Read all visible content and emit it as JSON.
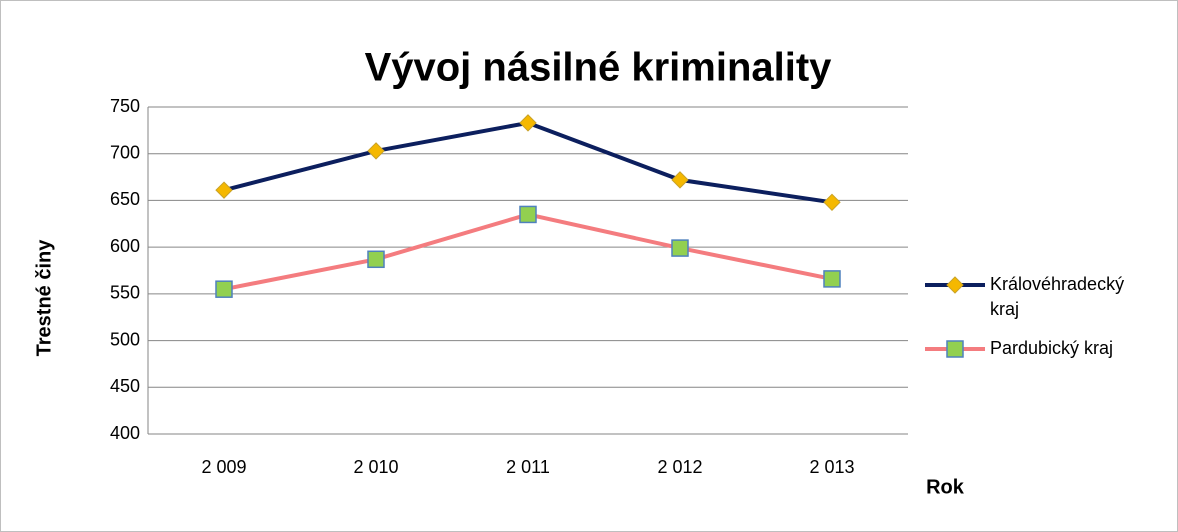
{
  "chart_data": {
    "type": "line",
    "title": "Vývoj násilné kriminality",
    "x_label": "Rok",
    "y_label": "Trestné činy",
    "categories": [
      "2 009",
      "2 010",
      "2 011",
      "2 012",
      "2 013"
    ],
    "series": [
      {
        "name": "Královéhradecký kraj",
        "color": "#0c1f5e",
        "marker": "diamond",
        "marker_color": "#f5b800",
        "values": [
          661,
          703,
          733,
          672,
          648
        ]
      },
      {
        "name": "Pardubický kraj",
        "color": "#f47c7f",
        "marker": "square",
        "marker_color": "#92d050",
        "values": [
          555,
          587,
          635,
          599,
          566
        ]
      }
    ],
    "ylim": [
      400,
      750
    ],
    "yticks": [
      400,
      450,
      500,
      550,
      600,
      650,
      700,
      750
    ],
    "grid": true,
    "legend": "right"
  }
}
